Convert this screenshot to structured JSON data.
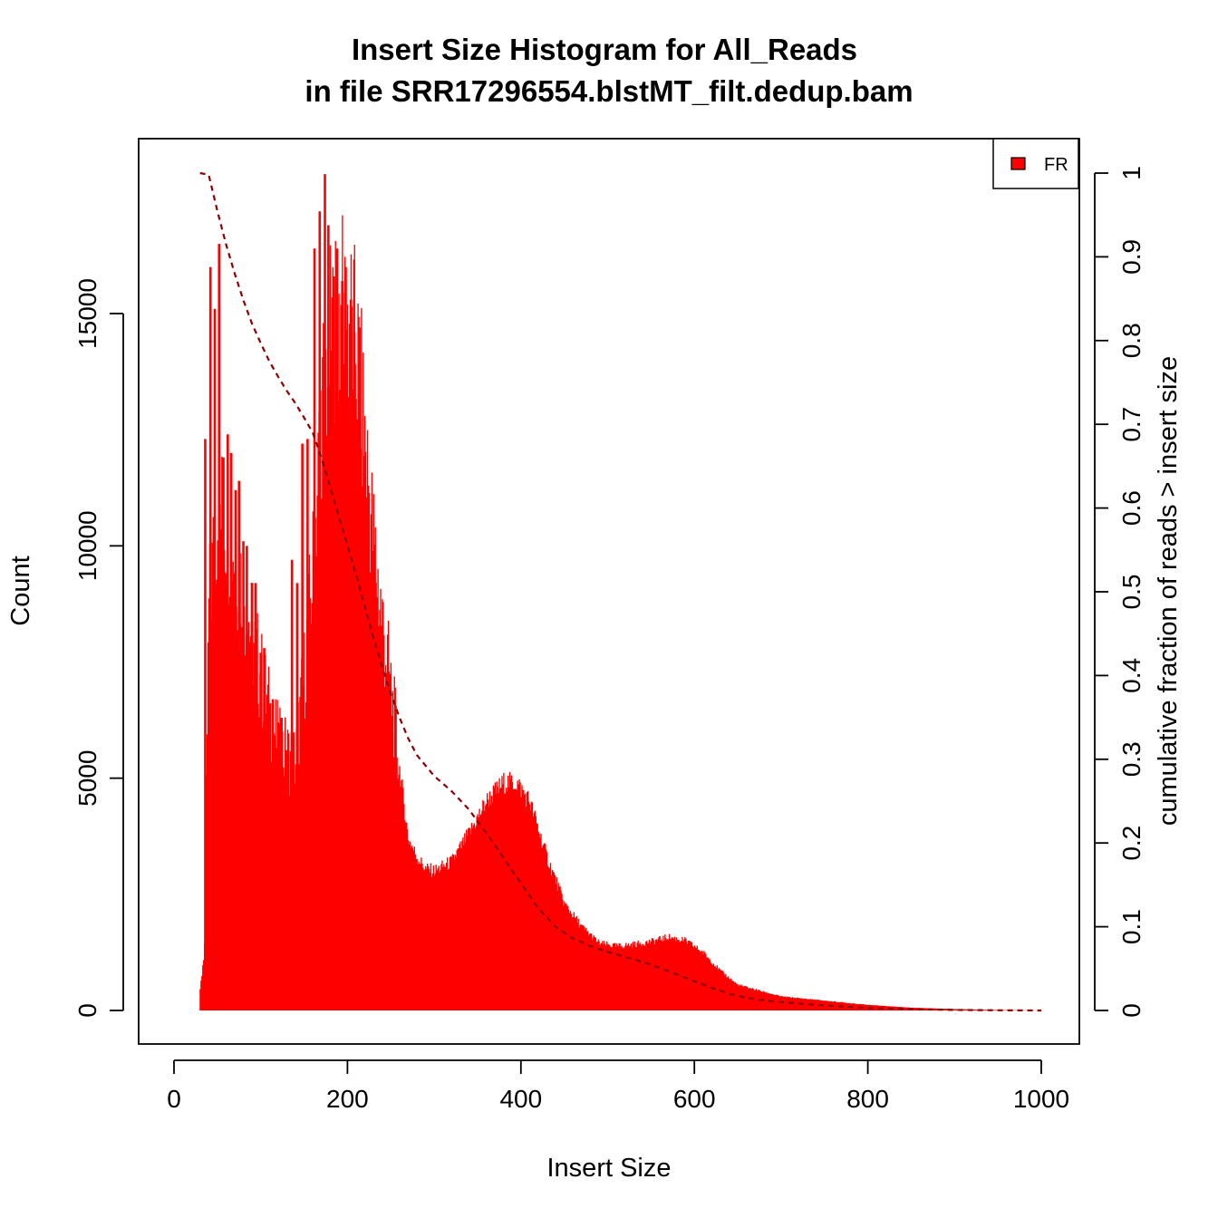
{
  "chart_data": {
    "type": "bar",
    "title": "Insert Size Histogram for All_Reads",
    "subtitle": "in file SRR17296554.blstMT_filt.dedup.bam",
    "xlabel": "Insert Size",
    "ylabel": "Count",
    "ylabel_right": "cumulative fraction of reads > insert size",
    "xlim": [
      0,
      1000
    ],
    "ylim": [
      0,
      18000
    ],
    "ylim_right": [
      0,
      1
    ],
    "x_ticks": [
      0,
      200,
      400,
      600,
      800,
      1000
    ],
    "y_ticks": [
      0,
      5000,
      10000,
      15000
    ],
    "y_ticks_right": [
      0,
      0.1,
      0.2,
      0.3,
      0.4,
      0.5,
      0.6,
      0.7,
      0.8,
      0.9,
      1
    ],
    "grid": false,
    "legend": {
      "position": "top-right",
      "entries": [
        {
          "label": "FR",
          "color": "#ff0000"
        }
      ]
    },
    "bar_color": "#ff0000",
    "cumulative_color": "#8b0000",
    "histogram_profile": {
      "x": [
        30,
        35,
        38,
        40,
        50,
        60,
        70,
        80,
        90,
        100,
        110,
        120,
        130,
        140,
        150,
        160,
        170,
        180,
        190,
        200,
        210,
        220,
        230,
        240,
        250,
        260,
        270,
        280,
        290,
        300,
        320,
        340,
        360,
        380,
        395,
        410,
        430,
        450,
        470,
        490,
        510,
        530,
        550,
        570,
        590,
        610,
        630,
        650,
        700,
        750,
        800,
        850,
        900,
        950,
        1000
      ],
      "counts": [
        400,
        1400,
        6000,
        8600,
        10800,
        10500,
        9900,
        9000,
        8000,
        7200,
        6400,
        5700,
        5500,
        5400,
        7200,
        9500,
        13000,
        14300,
        14900,
        14800,
        14200,
        12300,
        10000,
        8400,
        6900,
        5200,
        3700,
        3300,
        3050,
        3000,
        3200,
        3800,
        4500,
        4900,
        4900,
        4500,
        3300,
        2300,
        1800,
        1450,
        1380,
        1420,
        1480,
        1580,
        1500,
        1250,
        850,
        550,
        300,
        210,
        120,
        60,
        30,
        10,
        0
      ]
    },
    "spikes": {
      "x": [
        36,
        42,
        47,
        52,
        57,
        62,
        66,
        71,
        75,
        80,
        84,
        90,
        94,
        100,
        104,
        110,
        114,
        120,
        124,
        130,
        136,
        142,
        148,
        154,
        162,
        168,
        174,
        178,
        184,
        188,
        194,
        198,
        204,
        208,
        214
      ],
      "counts": [
        12300,
        16000,
        15100,
        16500,
        11900,
        12400,
        12000,
        11200,
        11400,
        10100,
        10000,
        9200,
        9200,
        7700,
        7800,
        6600,
        6700,
        6200,
        6300,
        5600,
        9700,
        9200,
        12200,
        12300,
        16400,
        17200,
        18000,
        16900,
        15800,
        16400,
        15700,
        16000,
        15300,
        14600,
        14700
      ]
    },
    "cumulative": {
      "x": [
        30,
        40,
        50,
        60,
        70,
        80,
        90,
        100,
        110,
        120,
        130,
        140,
        150,
        160,
        170,
        180,
        190,
        200,
        210,
        220,
        230,
        240,
        250,
        260,
        270,
        280,
        300,
        320,
        340,
        360,
        380,
        400,
        420,
        440,
        460,
        480,
        500,
        520,
        540,
        560,
        580,
        600,
        620,
        640,
        660,
        680,
        700,
        750,
        800,
        850,
        900,
        950,
        1000
      ],
      "fraction": [
        1.0,
        0.998,
        0.955,
        0.915,
        0.88,
        0.848,
        0.82,
        0.797,
        0.775,
        0.757,
        0.74,
        0.725,
        0.708,
        0.69,
        0.66,
        0.625,
        0.59,
        0.555,
        0.52,
        0.482,
        0.445,
        0.41,
        0.378,
        0.35,
        0.325,
        0.305,
        0.28,
        0.262,
        0.24,
        0.212,
        0.182,
        0.152,
        0.122,
        0.1,
        0.086,
        0.077,
        0.07,
        0.064,
        0.058,
        0.051,
        0.043,
        0.035,
        0.027,
        0.02,
        0.015,
        0.012,
        0.01,
        0.006,
        0.003,
        0.0015,
        0.0007,
        0.0002,
        0.0
      ]
    }
  }
}
